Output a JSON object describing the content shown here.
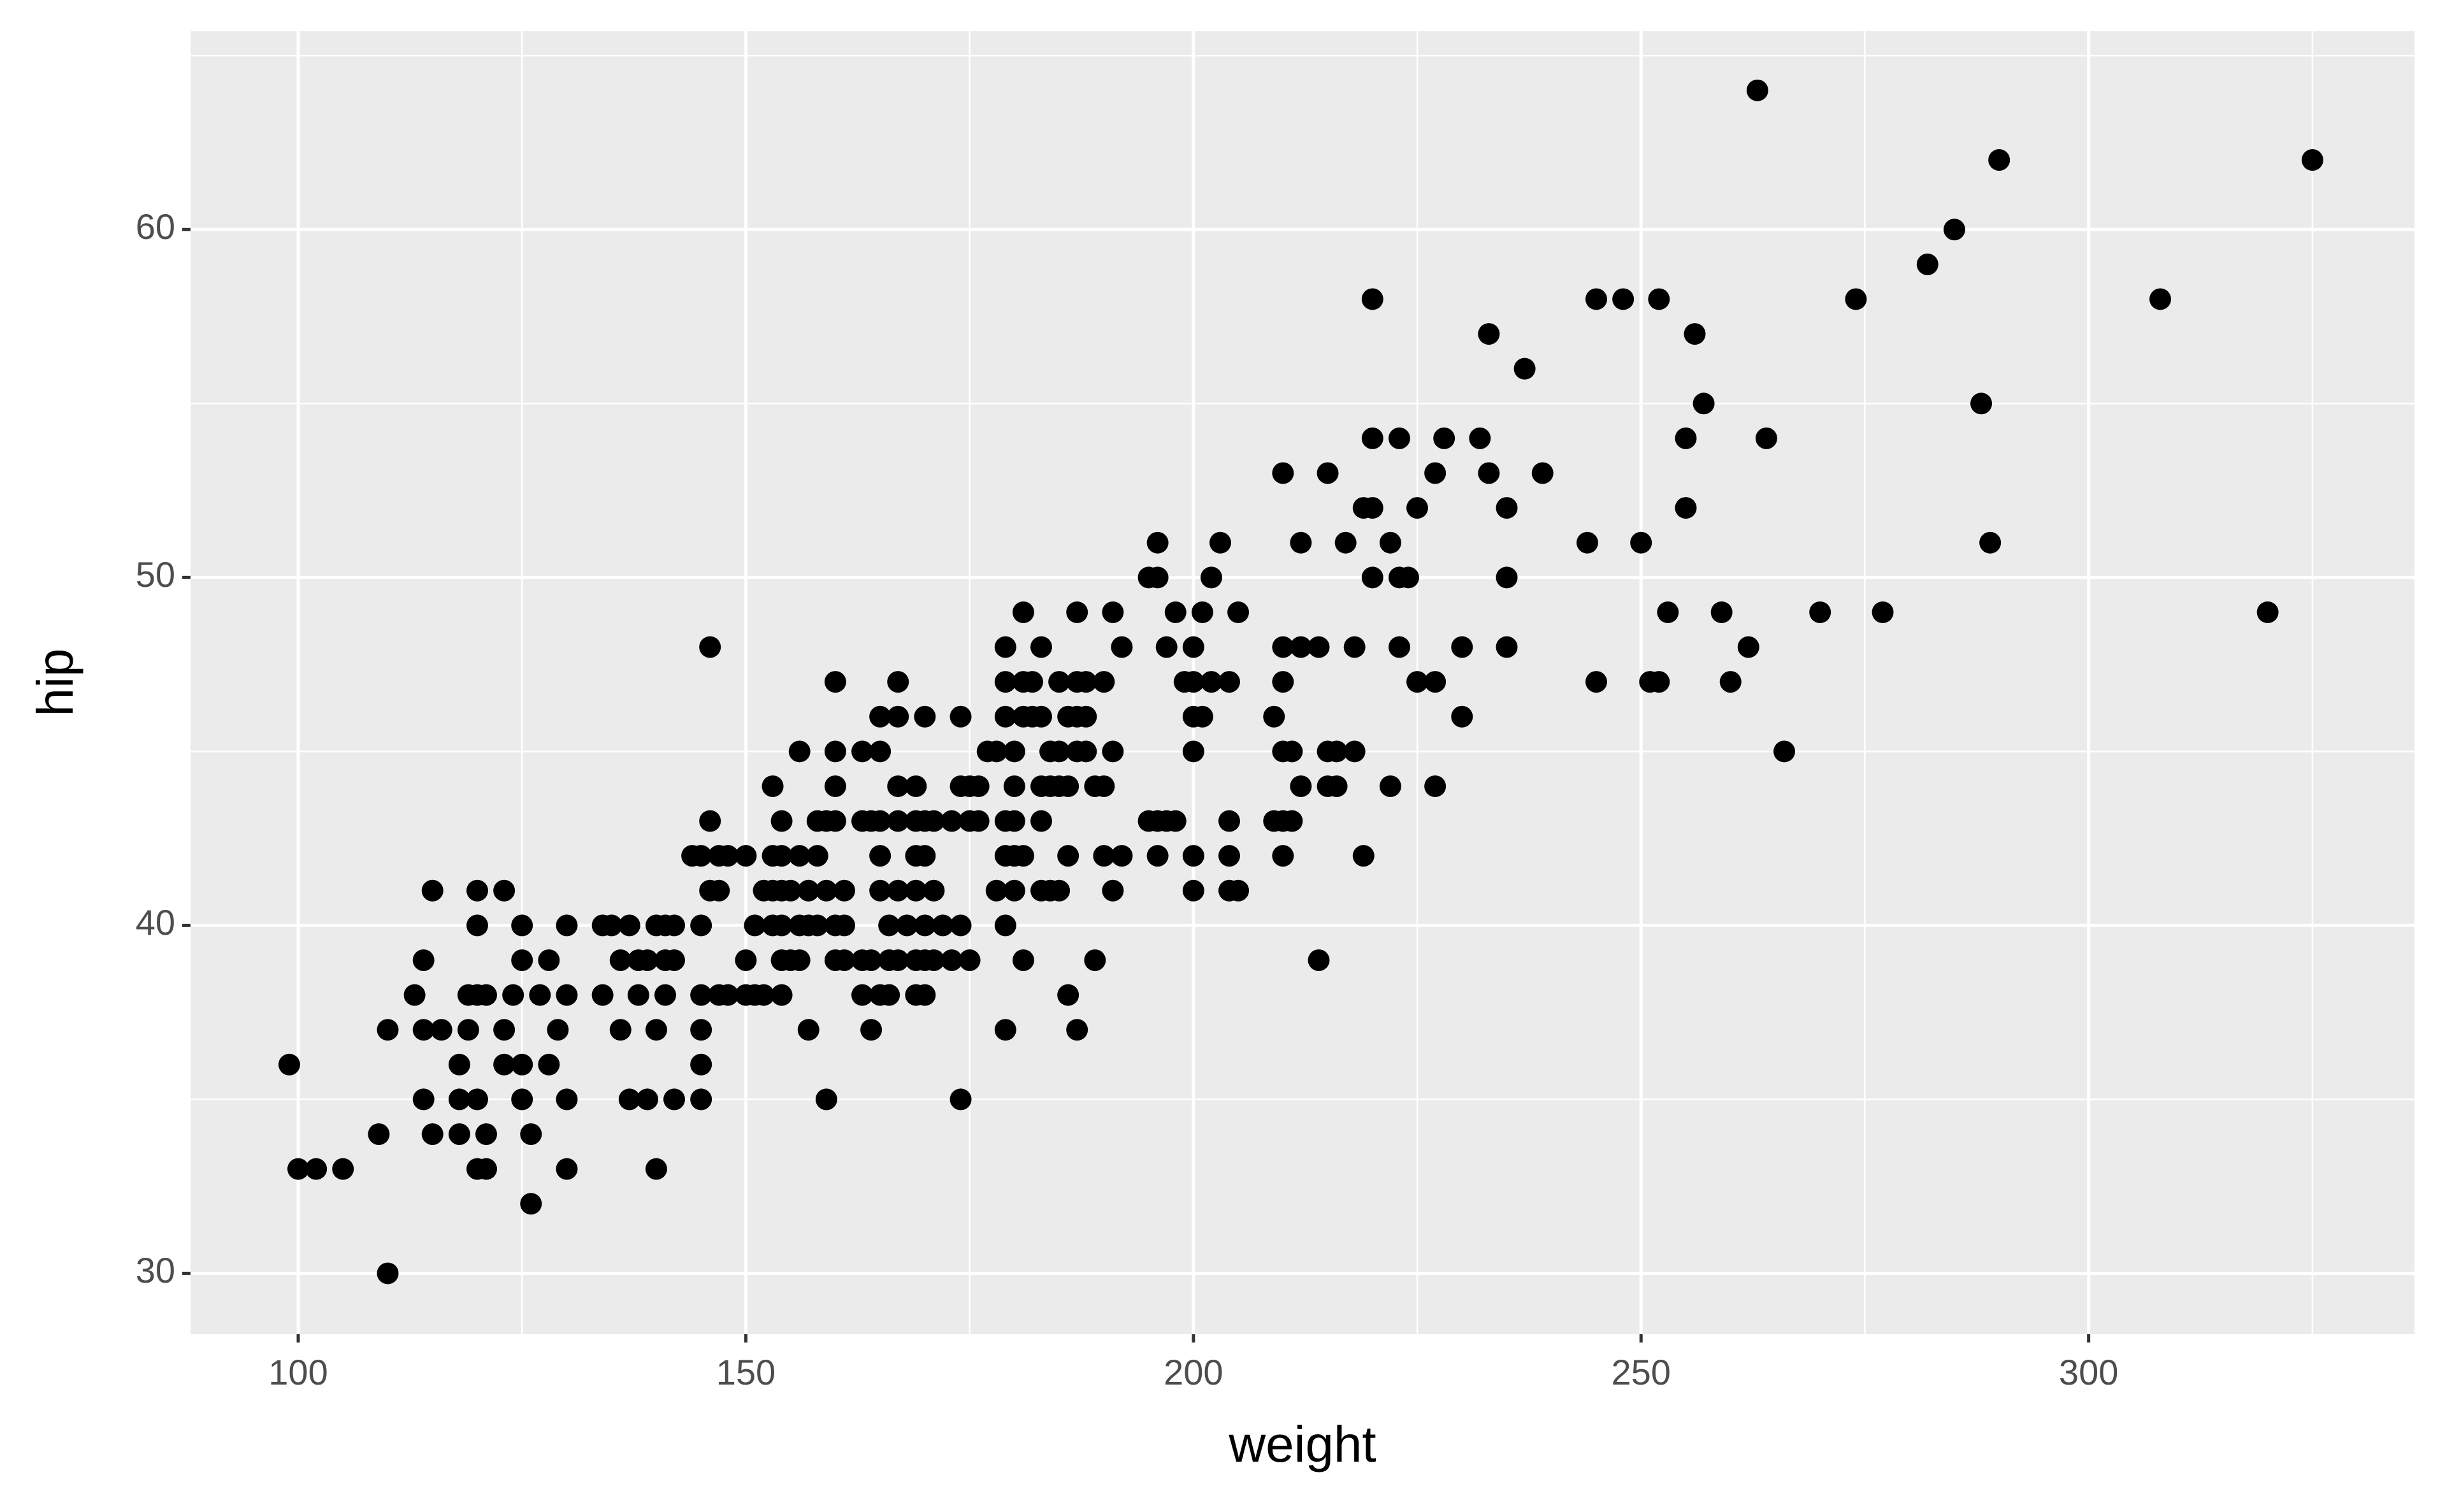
{
  "chart_data": {
    "type": "scatter",
    "x_label": "weight",
    "y_label": "hip",
    "color": "#000000",
    "x": [
      99,
      100,
      102,
      105,
      109,
      110,
      110,
      113,
      114,
      114,
      114,
      116,
      115,
      115,
      118,
      118,
      118,
      119,
      119,
      120,
      121,
      120,
      120,
      120,
      120,
      121,
      121,
      123,
      123,
      123,
      125,
      124,
      125,
      125,
      125,
      126,
      126,
      127,
      128,
      128,
      129,
      130,
      130,
      130,
      130,
      134,
      135,
      137,
      134,
      136,
      138,
      139,
      136,
      137,
      139,
      138,
      140,
      141,
      142,
      140,
      140,
      141,
      142,
      141,
      142,
      144,
      145,
      147,
      148,
      145,
      145,
      147,
      148,
      145,
      145,
      145,
      146,
      146,
      146,
      147,
      150,
      153,
      150,
      150,
      151,
      152,
      151,
      153,
      154,
      152,
      153,
      154,
      155,
      153,
      154,
      154,
      156,
      158,
      154,
      154,
      155,
      156,
      156,
      156,
      157,
      158,
      157,
      159,
      157,
      158,
      159,
      160,
      159,
      160,
      160,
      160,
      160,
      161,
      160,
      161,
      161,
      163,
      163,
      164,
      165,
      163,
      165,
      166,
      163,
      164,
      166,
      167,
      164,
      165,
      167,
      165,
      165,
      165,
      167,
      166,
      168,
      167,
      167,
      169,
      167,
      169,
      170,
      169,
      170,
      171,
      169,
      171,
      169,
      170,
      171,
      173,
      169,
      170,
      170,
      170,
      172,
      174,
      173,
      174,
      174,
      174,
      175,
      176,
      175,
      176,
      175,
      177,
      178,
      178,
      179,
      179,
      179,
      179,
      180,
      179,
      180,
      179,
      179,
      180,
      180,
      180,
      181,
      181,
      182,
      183,
      181,
      182,
      181,
      181,
      183,
      183,
      183,
      183,
      184,
      185,
      184,
      185,
      184,
      185,
      186,
      185,
      186,
      186,
      187,
      188,
      186,
      187,
      187,
      188,
      187,
      188,
      187,
      189,
      189,
      190,
      190,
      190,
      191,
      191,
      191,
      192,
      192,
      195,
      196,
      195,
      196,
      197,
      198,
      196,
      196,
      197,
      198,
      199,
      200,
      200,
      200,
      201,
      200,
      200,
      200,
      201,
      202,
      204,
      202,
      203,
      204,
      204,
      204,
      205,
      205,
      209,
      209,
      210,
      211,
      210,
      210,
      212,
      210,
      210,
      211,
      210,
      212,
      212,
      214,
      214,
      215,
      215,
      216,
      218,
      215,
      216,
      217,
      218,
      219,
      220,
      219,
      220,
      220,
      223,
      220,
      222,
      222,
      223,
      224,
      223,
      225,
      225,
      227,
      227,
      227,
      228,
      230,
      230,
      232,
      233,
      233,
      235,
      235,
      235,
      237,
      239,
      244,
      245,
      248,
      245,
      250,
      251,
      252,
      252,
      253,
      255,
      255,
      256,
      257,
      259,
      260,
      262,
      263,
      264,
      266,
      270,
      274,
      277,
      282,
      285,
      288,
      289,
      290,
      308,
      320,
      325
    ],
    "values": [
      36,
      33,
      33,
      33,
      34,
      30,
      37,
      38,
      39,
      35,
      37,
      37,
      41,
      34,
      36,
      35,
      34,
      37,
      38,
      38,
      38,
      41,
      40,
      35,
      33,
      33,
      34,
      41,
      37,
      36,
      36,
      38,
      40,
      39,
      35,
      32,
      34,
      38,
      39,
      36,
      37,
      40,
      38,
      35,
      33,
      40,
      40,
      40,
      38,
      39,
      39,
      39,
      37,
      35,
      35,
      38,
      40,
      40,
      40,
      37,
      33,
      39,
      39,
      38,
      35,
      42,
      42,
      42,
      42,
      40,
      38,
      38,
      38,
      37,
      36,
      35,
      48,
      43,
      41,
      41,
      42,
      42,
      39,
      38,
      38,
      38,
      40,
      40,
      40,
      41,
      41,
      41,
      41,
      44,
      43,
      42,
      42,
      42,
      38,
      39,
      39,
      39,
      45,
      40,
      40,
      40,
      41,
      41,
      37,
      43,
      43,
      43,
      35,
      47,
      45,
      44,
      40,
      40,
      39,
      39,
      41,
      45,
      43,
      43,
      43,
      38,
      38,
      38,
      39,
      39,
      39,
      39,
      37,
      46,
      46,
      45,
      42,
      41,
      41,
      40,
      40,
      47,
      44,
      44,
      43,
      42,
      42,
      43,
      43,
      43,
      41,
      41,
      39,
      39,
      39,
      39,
      38,
      38,
      46,
      40,
      40,
      40,
      43,
      46,
      35,
      44,
      44,
      44,
      43,
      43,
      39,
      45,
      45,
      41,
      48,
      47,
      46,
      43,
      43,
      42,
      42,
      40,
      37,
      44,
      41,
      45,
      49,
      46,
      46,
      46,
      47,
      47,
      42,
      39,
      48,
      44,
      43,
      41,
      41,
      41,
      45,
      45,
      44,
      44,
      44,
      47,
      42,
      46,
      46,
      46,
      38,
      49,
      47,
      47,
      45,
      45,
      37,
      39,
      44,
      44,
      47,
      42,
      49,
      45,
      41,
      48,
      42,
      50,
      50,
      43,
      43,
      43,
      43,
      51,
      42,
      48,
      49,
      47,
      47,
      48,
      46,
      46,
      45,
      42,
      41,
      49,
      47,
      47,
      50,
      51,
      43,
      42,
      41,
      41,
      49,
      46,
      43,
      43,
      43,
      53,
      48,
      48,
      47,
      45,
      45,
      42,
      51,
      44,
      48,
      39,
      53,
      45,
      45,
      45,
      44,
      44,
      51,
      48,
      52,
      52,
      42,
      58,
      54,
      54,
      50,
      51,
      44,
      50,
      50,
      48,
      52,
      47,
      47,
      53,
      44,
      54,
      48,
      46,
      54,
      57,
      53,
      52,
      50,
      48,
      56,
      53,
      51,
      58,
      58,
      47,
      51,
      47,
      47,
      58,
      49,
      52,
      54,
      57,
      55,
      49,
      47,
      48,
      64,
      54,
      45,
      49,
      58,
      49,
      59,
      60,
      55,
      51,
      62,
      58,
      49,
      62
    ],
    "xlim": [
      87.97,
      336.4
    ],
    "ylim": [
      28.25,
      65.7
    ],
    "xticks": [
      100,
      150,
      200,
      250,
      300
    ],
    "yticks": [
      30,
      40,
      50,
      60
    ],
    "grid": true
  }
}
